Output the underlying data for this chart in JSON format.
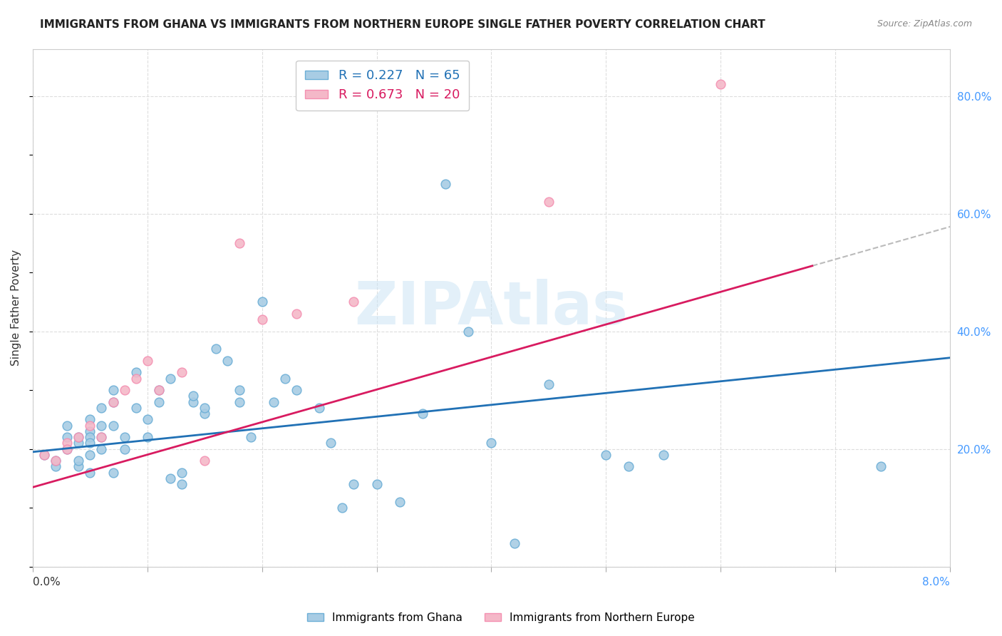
{
  "title": "IMMIGRANTS FROM GHANA VS IMMIGRANTS FROM NORTHERN EUROPE SINGLE FATHER POVERTY CORRELATION CHART",
  "source": "Source: ZipAtlas.com",
  "ylabel": "Single Father Poverty",
  "legend_blue_r": "R = 0.227",
  "legend_blue_n": "N = 65",
  "legend_pink_r": "R = 0.673",
  "legend_pink_n": "N = 20",
  "watermark": "ZIPAtlas",
  "xlim": [
    0.0,
    0.08
  ],
  "ylim": [
    0.0,
    0.88
  ],
  "yticks": [
    0.0,
    0.2,
    0.4,
    0.6,
    0.8
  ],
  "ytick_labels": [
    "",
    "20.0%",
    "40.0%",
    "60.0%",
    "80.0%"
  ],
  "blue_color": "#a8cce4",
  "pink_color": "#f4b8c8",
  "blue_edge_color": "#6baed6",
  "pink_edge_color": "#f48fb1",
  "blue_line_color": "#2171b5",
  "pink_line_color": "#d81b60",
  "ghana_x": [
    0.001,
    0.002,
    0.002,
    0.003,
    0.003,
    0.003,
    0.004,
    0.004,
    0.004,
    0.004,
    0.005,
    0.005,
    0.005,
    0.005,
    0.005,
    0.005,
    0.006,
    0.006,
    0.006,
    0.006,
    0.007,
    0.007,
    0.007,
    0.007,
    0.008,
    0.008,
    0.009,
    0.009,
    0.01,
    0.01,
    0.011,
    0.011,
    0.012,
    0.012,
    0.013,
    0.013,
    0.014,
    0.014,
    0.015,
    0.015,
    0.016,
    0.017,
    0.018,
    0.018,
    0.019,
    0.02,
    0.021,
    0.022,
    0.023,
    0.025,
    0.026,
    0.027,
    0.028,
    0.03,
    0.032,
    0.034,
    0.036,
    0.038,
    0.04,
    0.042,
    0.045,
    0.05,
    0.052,
    0.055,
    0.074
  ],
  "ghana_y": [
    0.19,
    0.17,
    0.18,
    0.22,
    0.24,
    0.2,
    0.21,
    0.22,
    0.17,
    0.18,
    0.23,
    0.22,
    0.19,
    0.25,
    0.21,
    0.16,
    0.27,
    0.24,
    0.2,
    0.22,
    0.28,
    0.3,
    0.24,
    0.16,
    0.22,
    0.2,
    0.33,
    0.27,
    0.25,
    0.22,
    0.3,
    0.28,
    0.32,
    0.15,
    0.16,
    0.14,
    0.28,
    0.29,
    0.26,
    0.27,
    0.37,
    0.35,
    0.28,
    0.3,
    0.22,
    0.45,
    0.28,
    0.32,
    0.3,
    0.27,
    0.21,
    0.1,
    0.14,
    0.14,
    0.11,
    0.26,
    0.65,
    0.4,
    0.21,
    0.04,
    0.31,
    0.19,
    0.17,
    0.19,
    0.17
  ],
  "europe_x": [
    0.001,
    0.002,
    0.003,
    0.003,
    0.004,
    0.005,
    0.006,
    0.007,
    0.008,
    0.009,
    0.01,
    0.011,
    0.013,
    0.015,
    0.018,
    0.02,
    0.023,
    0.028,
    0.045,
    0.06
  ],
  "europe_y": [
    0.19,
    0.18,
    0.21,
    0.2,
    0.22,
    0.24,
    0.22,
    0.28,
    0.3,
    0.32,
    0.35,
    0.3,
    0.33,
    0.18,
    0.55,
    0.42,
    0.43,
    0.45,
    0.62,
    0.82
  ],
  "b_blue_vis": 0.195,
  "m_blue_vis": 2.0,
  "b_pink_vis": 0.135,
  "m_pink_vis": 5.533
}
